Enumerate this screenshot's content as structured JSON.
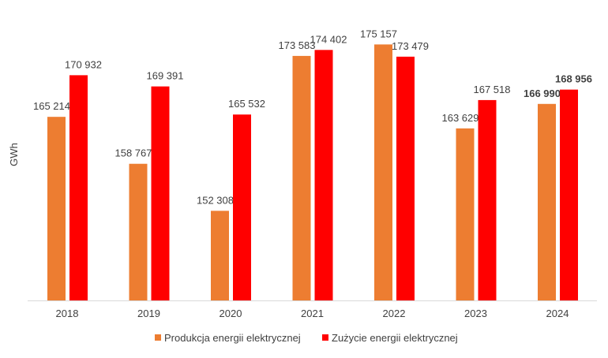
{
  "chart_data": {
    "type": "bar",
    "title": "",
    "xlabel": "",
    "ylabel": "GWh",
    "ylim": [
      140000,
      180000
    ],
    "grid": false,
    "legend_position": "bottom",
    "categories": [
      "2018",
      "2019",
      "2020",
      "2021",
      "2022",
      "2023",
      "2024"
    ],
    "series": [
      {
        "name": "Produkcja energii elektrycznej",
        "color": "#ED7D31",
        "values": [
          165214,
          158767,
          152308,
          173583,
          175157,
          163629,
          166990
        ],
        "labels": [
          "165 214",
          "158 767",
          "152 308",
          "173 583",
          "175 157",
          "163 629",
          "166 990"
        ]
      },
      {
        "name": "Zużycie energii elektrycznej",
        "color": "#FF0000",
        "values": [
          170932,
          169391,
          165532,
          174402,
          173479,
          167518,
          168956
        ],
        "labels": [
          "170 932",
          "169 391",
          "165 532",
          "174 402",
          "173 479",
          "167 518",
          "168 956"
        ]
      }
    ],
    "bold_category": "2024"
  }
}
